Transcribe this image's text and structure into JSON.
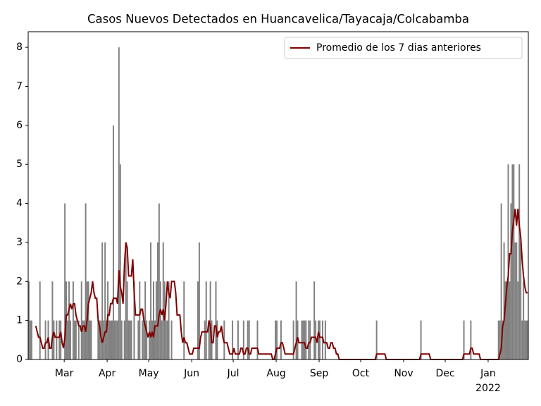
{
  "chart_data": {
    "type": "bar",
    "title": "Casos Nuevos Detectados en Huancavelica/Tayacaja/Colcabamba",
    "color": "#808080",
    "values": [
      2,
      1,
      1,
      0,
      0,
      0,
      0,
      0,
      2,
      0,
      0,
      0,
      1,
      0,
      1,
      0,
      0,
      2,
      1,
      0,
      1,
      0,
      1,
      1,
      0,
      0,
      4,
      2,
      1,
      2,
      1,
      0,
      2,
      1,
      1,
      0,
      1,
      0,
      2,
      1,
      1,
      4,
      2,
      2,
      1,
      1,
      0,
      0,
      0,
      0,
      1,
      1,
      1,
      3,
      1,
      3,
      1,
      2,
      1,
      1,
      1,
      6,
      1,
      1,
      1,
      8,
      5,
      1,
      0,
      1,
      3,
      2,
      1,
      1,
      1,
      0,
      2,
      0,
      0,
      1,
      2,
      0,
      1,
      1,
      2,
      1,
      0,
      1,
      3,
      1,
      2,
      1,
      2,
      3,
      4,
      2,
      1,
      3,
      2,
      1,
      1,
      2,
      0,
      1,
      0,
      0,
      0,
      0,
      0,
      0,
      0,
      0,
      2,
      0,
      0,
      0,
      0,
      0,
      0,
      0,
      0,
      0,
      2,
      3,
      0,
      0,
      0,
      1,
      2,
      0,
      1,
      2,
      1,
      0,
      0,
      2,
      1,
      0,
      0,
      0,
      0,
      1,
      0,
      0,
      0,
      0,
      0,
      1,
      0,
      0,
      0,
      1,
      0,
      0,
      0,
      1,
      0,
      0,
      1,
      1,
      0,
      0,
      0,
      0,
      0,
      1,
      0,
      0,
      0,
      0,
      0,
      0,
      0,
      0,
      0,
      0,
      0,
      0,
      1,
      1,
      0,
      0,
      1,
      0,
      0,
      0,
      0,
      0,
      0,
      0,
      0,
      1,
      0,
      2,
      1,
      0,
      0,
      1,
      1,
      1,
      1,
      0,
      1,
      1,
      0,
      0,
      2,
      1,
      0,
      1,
      1,
      0,
      1,
      0,
      1,
      0,
      0,
      0,
      0,
      0,
      0,
      0,
      0,
      0,
      0,
      0,
      0,
      0,
      0,
      0,
      0,
      0,
      0,
      0,
      0,
      0,
      0,
      0,
      0,
      0,
      0,
      0,
      0,
      0,
      0,
      0,
      0,
      0,
      0,
      0,
      0,
      1,
      0,
      0,
      0,
      0,
      0,
      0,
      0,
      0,
      0,
      0,
      0,
      0,
      0,
      0,
      0,
      0,
      0,
      0,
      0,
      0,
      0,
      0,
      0,
      0,
      0,
      0,
      0,
      0,
      0,
      0,
      0,
      1,
      0,
      0,
      0,
      0,
      0,
      0,
      0,
      0,
      0,
      0,
      0,
      0,
      0,
      0,
      0,
      0,
      0,
      0,
      0,
      0,
      0,
      0,
      0,
      0,
      0,
      0,
      0,
      0,
      0,
      0,
      1,
      0,
      0,
      0,
      0,
      1,
      0,
      0,
      0,
      0,
      0,
      0,
      0,
      0,
      0,
      0,
      0,
      0,
      0,
      0,
      0,
      0,
      0,
      0,
      0,
      1,
      1,
      4,
      1,
      3,
      2,
      2,
      5,
      2,
      4,
      5,
      5,
      3,
      3,
      2,
      5,
      3,
      1,
      2,
      1,
      1,
      1
    ],
    "series": [
      {
        "name": "Promedio de los 7 dias anteriores",
        "type": "line",
        "color": "#800000",
        "values": [
          null,
          null,
          null,
          null,
          null,
          0.86,
          0.71,
          0.57,
          0.57,
          0.43,
          0.29,
          0.29,
          0.43,
          0.43,
          0.57,
          0.29,
          0.29,
          0.57,
          0.71,
          0.57,
          0.57,
          0.57,
          0.57,
          0.71,
          0.43,
          0.29,
          0.57,
          1.14,
          1.14,
          1.29,
          1.43,
          1.29,
          1.43,
          1.43,
          1.14,
          1.0,
          0.86,
          0.86,
          0.71,
          0.86,
          0.86,
          0.71,
          1.0,
          1.43,
          1.57,
          1.71,
          2.0,
          1.71,
          1.57,
          1.57,
          1.0,
          0.86,
          0.57,
          0.43,
          0.57,
          0.71,
          0.71,
          1.14,
          1.14,
          1.43,
          1.43,
          1.57,
          1.57,
          1.57,
          1.43,
          2.29,
          1.86,
          1.71,
          1.43,
          2.43,
          3.0,
          2.86,
          2.14,
          2.14,
          2.14,
          2.57,
          1.71,
          1.14,
          1.14,
          1.14,
          1.14,
          1.29,
          1.29,
          1.0,
          0.86,
          0.71,
          0.57,
          0.71,
          0.57,
          0.71,
          0.57,
          0.86,
          0.86,
          0.86,
          1.14,
          1.29,
          1.14,
          1.29,
          1.0,
          1.43,
          2.0,
          1.71,
          1.57,
          2.0,
          2.0,
          2.0,
          1.71,
          1.14,
          1.14,
          1.14,
          0.71,
          0.43,
          0.57,
          0.43,
          0.43,
          0.29,
          0.14,
          0.14,
          0.14,
          0.29,
          0.29,
          0.29,
          0.29,
          0.29,
          0.57,
          0.71,
          0.71,
          0.71,
          0.71,
          0.71,
          1.0,
          0.86,
          0.43,
          0.43,
          0.86,
          0.86,
          0.57,
          0.71,
          0.71,
          0.86,
          0.57,
          0.43,
          0.43,
          0.43,
          0.29,
          0.14,
          0.14,
          0.14,
          0.29,
          0.14,
          0.14,
          0.14,
          0.14,
          0.29,
          0.29,
          0.14,
          0.14,
          0.29,
          0.29,
          0.14,
          0.14,
          0.29,
          0.29,
          0.29,
          0.29,
          0.29,
          0.14,
          0.14,
          0.14,
          0.14,
          0.14,
          0.14,
          0.14,
          0.14,
          0.14,
          0.14,
          0,
          0,
          0.14,
          0.29,
          0.29,
          0.29,
          0.43,
          0.43,
          0.29,
          0.14,
          0.14,
          0.14,
          0.14,
          0.14,
          0.14,
          0.14,
          0.29,
          0.43,
          0.57,
          0.43,
          0.43,
          0.43,
          0.43,
          0.43,
          0.29,
          0.29,
          0.43,
          0.43,
          0.57,
          0.57,
          0.57,
          0.57,
          0.43,
          0.71,
          0.57,
          0.57,
          0.57,
          0.43,
          0.43,
          0.43,
          0.29,
          0.29,
          0.43,
          0.43,
          0.29,
          0.29,
          0.14,
          0.14,
          0,
          0,
          0,
          0,
          0,
          0,
          0,
          0,
          0,
          0,
          0,
          0,
          0,
          0,
          0,
          0,
          0,
          0,
          0,
          0,
          0,
          0,
          0,
          0,
          0,
          0,
          0,
          0.14,
          0.14,
          0.14,
          0.14,
          0.14,
          0.14,
          0.14,
          0,
          0,
          0,
          0,
          0,
          0,
          0,
          0,
          0,
          0,
          0,
          0,
          0,
          0,
          0,
          0,
          0,
          0,
          0,
          0,
          0,
          0,
          0,
          0,
          0,
          0.14,
          0.14,
          0.14,
          0.14,
          0.14,
          0.14,
          0.14,
          0,
          0,
          0,
          0,
          0,
          0,
          0,
          0,
          0,
          0,
          0,
          0,
          0,
          0,
          0,
          0,
          0,
          0,
          0,
          0,
          0,
          0,
          0,
          0,
          0.14,
          0.14,
          0.14,
          0.14,
          0.14,
          0.29,
          0.29,
          0.14,
          0.14,
          0.14,
          0.14,
          0.14,
          0,
          0,
          0,
          0,
          0,
          0,
          0,
          0,
          0,
          0,
          0,
          0,
          0,
          0,
          0.14,
          0.29,
          0.86,
          1.0,
          1.43,
          1.86,
          2.14,
          2.71,
          2.71,
          3.29,
          3.57,
          3.86,
          3.43,
          3.86,
          3.43,
          3.14,
          2.57,
          2.14,
          1.86,
          1.71,
          1.71
        ]
      }
    ],
    "xlim": [
      0,
      361
    ],
    "xticks": [
      {
        "value": 26,
        "label": "Mar"
      },
      {
        "value": 57,
        "label": "Apr"
      },
      {
        "value": 87,
        "label": "May"
      },
      {
        "value": 118,
        "label": "Jun"
      },
      {
        "value": 148,
        "label": "Jul"
      },
      {
        "value": 179,
        "label": "Aug"
      },
      {
        "value": 210,
        "label": "Sep"
      },
      {
        "value": 240,
        "label": "Oct"
      },
      {
        "value": 271,
        "label": "Nov"
      },
      {
        "value": 301,
        "label": "Dec"
      },
      {
        "value": 332,
        "label": "Jan"
      }
    ],
    "x_year_label": "2022",
    "ylim": [
      0,
      8.4
    ],
    "yticks": [
      0,
      1,
      2,
      3,
      4,
      5,
      6,
      7,
      8
    ],
    "legend": "upper right"
  }
}
